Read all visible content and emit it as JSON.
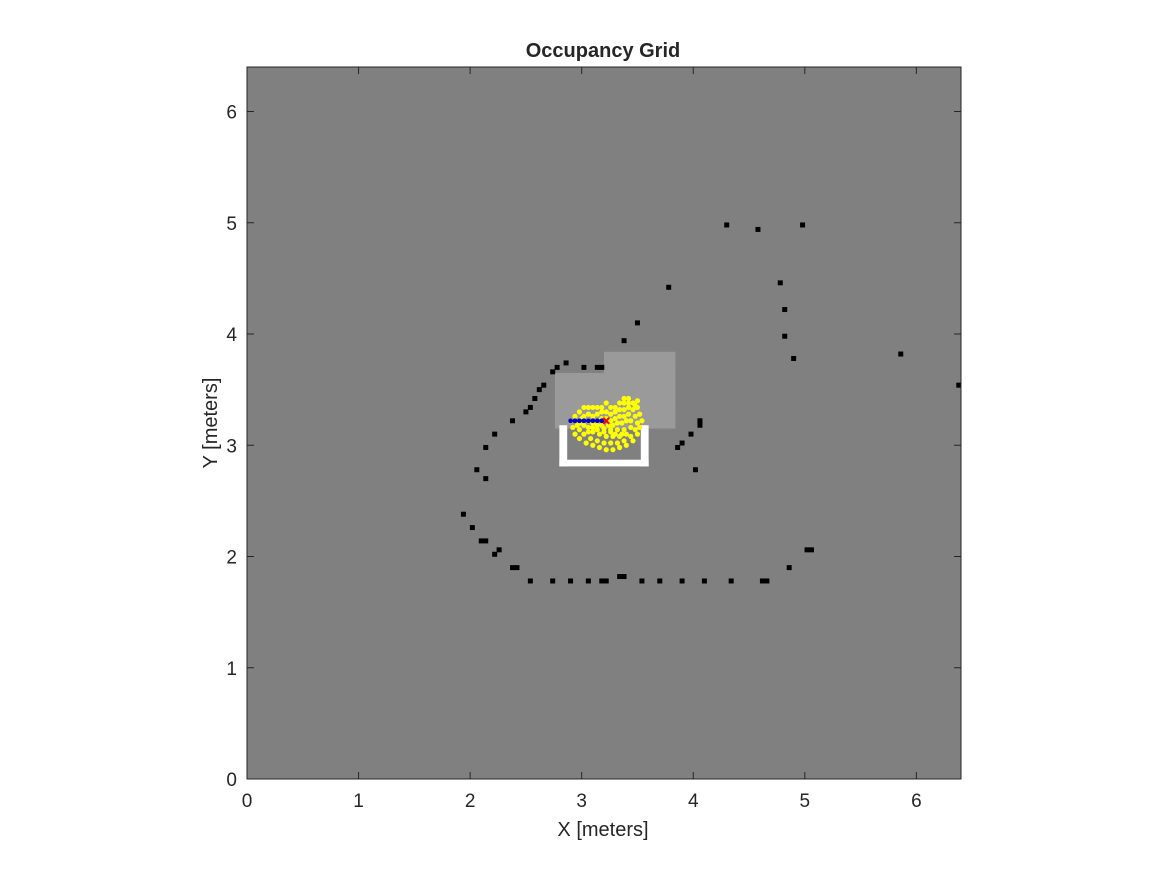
{
  "chart_data": {
    "type": "scatter",
    "title": "Occupancy Grid",
    "xlabel": "X [meters]",
    "ylabel": "Y [meters]",
    "xlim": [
      0,
      6.4
    ],
    "ylim": [
      0,
      6.4
    ],
    "xticks": [
      "0",
      "1",
      "2",
      "3",
      "4",
      "5",
      "6"
    ],
    "yticks": [
      "0",
      "1",
      "2",
      "3",
      "4",
      "5",
      "6"
    ],
    "grid": false,
    "legend": "none",
    "colors": {
      "unknown": "#808080",
      "free_light": "#9a9a9a",
      "free": "#ffffff",
      "occupied": "#000000",
      "particles": "#ffff00",
      "path": "#0000cc",
      "robot": "#ff0000",
      "axes": "#262626"
    },
    "regions": [
      {
        "name": "explored-area-upper",
        "x": [
          3.2,
          3.84
        ],
        "y": [
          3.35,
          3.84
        ],
        "color": "#9a9a9a"
      },
      {
        "name": "explored-area-lower",
        "x": [
          2.8,
          3.84
        ],
        "y": [
          3.15,
          3.65
        ],
        "color": "#9a9a9a"
      },
      {
        "name": "explored-area-left",
        "x": [
          2.76,
          2.85
        ],
        "y": [
          3.15,
          3.65
        ],
        "color": "#9a9a9a"
      }
    ],
    "free_cells": [
      [
        2.8,
        2.81,
        3.6,
        2.87
      ],
      [
        2.8,
        2.81,
        2.87,
        3.18
      ],
      [
        3.53,
        2.81,
        3.6,
        3.18
      ]
    ],
    "occupied_cells": [
      [
        4.3,
        4.98
      ],
      [
        4.58,
        4.94
      ],
      [
        4.98,
        4.98
      ],
      [
        3.78,
        4.42
      ],
      [
        4.78,
        4.46
      ],
      [
        4.82,
        4.22
      ],
      [
        4.82,
        3.98
      ],
      [
        4.9,
        3.78
      ],
      [
        3.5,
        4.1
      ],
      [
        3.38,
        3.94
      ],
      [
        5.86,
        3.82
      ],
      [
        6.38,
        3.54
      ],
      [
        3.14,
        3.7
      ],
      [
        3.18,
        3.7
      ],
      [
        3.02,
        3.7
      ],
      [
        2.86,
        3.74
      ],
      [
        2.78,
        3.7
      ],
      [
        2.74,
        3.66
      ],
      [
        2.66,
        3.54
      ],
      [
        2.62,
        3.5
      ],
      [
        2.58,
        3.42
      ],
      [
        2.54,
        3.34
      ],
      [
        2.5,
        3.3
      ],
      [
        2.38,
        3.22
      ],
      [
        2.22,
        3.1
      ],
      [
        2.14,
        2.98
      ],
      [
        2.06,
        2.78
      ],
      [
        2.14,
        2.7
      ],
      [
        1.94,
        2.38
      ],
      [
        2.02,
        2.26
      ],
      [
        2.1,
        2.14
      ],
      [
        2.14,
        2.14
      ],
      [
        2.26,
        2.06
      ],
      [
        2.22,
        2.02
      ],
      [
        2.38,
        1.9
      ],
      [
        2.42,
        1.9
      ],
      [
        2.54,
        1.78
      ],
      [
        2.74,
        1.78
      ],
      [
        2.9,
        1.78
      ],
      [
        3.06,
        1.78
      ],
      [
        3.18,
        1.78
      ],
      [
        3.22,
        1.78
      ],
      [
        3.34,
        1.82
      ],
      [
        3.38,
        1.82
      ],
      [
        3.54,
        1.78
      ],
      [
        3.7,
        1.78
      ],
      [
        3.9,
        1.78
      ],
      [
        4.1,
        1.78
      ],
      [
        4.34,
        1.78
      ],
      [
        4.62,
        1.78
      ],
      [
        4.66,
        1.78
      ],
      [
        4.86,
        1.9
      ],
      [
        5.02,
        2.06
      ],
      [
        5.06,
        2.06
      ],
      [
        3.86,
        2.98
      ],
      [
        3.9,
        3.02
      ],
      [
        3.98,
        3.1
      ],
      [
        4.06,
        3.18
      ],
      [
        4.06,
        3.22
      ],
      [
        4.02,
        2.78
      ]
    ],
    "particles": [
      [
        2.9,
        3.22
      ],
      [
        2.94,
        3.26
      ],
      [
        2.98,
        3.3
      ],
      [
        3.02,
        3.34
      ],
      [
        3.06,
        3.34
      ],
      [
        3.1,
        3.34
      ],
      [
        3.14,
        3.34
      ],
      [
        3.18,
        3.34
      ],
      [
        3.22,
        3.38
      ],
      [
        3.26,
        3.34
      ],
      [
        3.3,
        3.34
      ],
      [
        3.34,
        3.38
      ],
      [
        3.38,
        3.38
      ],
      [
        3.42,
        3.42
      ],
      [
        3.46,
        3.38
      ],
      [
        3.5,
        3.34
      ],
      [
        3.52,
        3.28
      ],
      [
        3.54,
        3.22
      ],
      [
        3.52,
        3.16
      ],
      [
        3.5,
        3.1
      ],
      [
        3.46,
        3.04
      ],
      [
        3.4,
        3.0
      ],
      [
        3.34,
        2.98
      ],
      [
        3.28,
        2.96
      ],
      [
        3.22,
        2.96
      ],
      [
        3.16,
        2.98
      ],
      [
        3.1,
        3.0
      ],
      [
        3.04,
        3.02
      ],
      [
        2.98,
        3.06
      ],
      [
        2.94,
        3.1
      ],
      [
        2.92,
        3.16
      ],
      [
        2.98,
        3.2
      ],
      [
        3.02,
        3.26
      ],
      [
        3.06,
        3.28
      ],
      [
        3.1,
        3.26
      ],
      [
        3.14,
        3.28
      ],
      [
        3.18,
        3.3
      ],
      [
        3.22,
        3.3
      ],
      [
        3.26,
        3.28
      ],
      [
        3.3,
        3.3
      ],
      [
        3.34,
        3.32
      ],
      [
        3.38,
        3.32
      ],
      [
        3.42,
        3.34
      ],
      [
        3.46,
        3.32
      ],
      [
        3.48,
        3.26
      ],
      [
        3.5,
        3.2
      ],
      [
        3.48,
        3.14
      ],
      [
        3.44,
        3.08
      ],
      [
        3.38,
        3.04
      ],
      [
        3.32,
        3.02
      ],
      [
        3.26,
        3.02
      ],
      [
        3.2,
        3.02
      ],
      [
        3.14,
        3.04
      ],
      [
        3.08,
        3.06
      ],
      [
        3.02,
        3.1
      ],
      [
        2.98,
        3.14
      ],
      [
        3.02,
        3.18
      ],
      [
        3.06,
        3.22
      ],
      [
        3.1,
        3.2
      ],
      [
        3.14,
        3.22
      ],
      [
        3.18,
        3.24
      ],
      [
        3.22,
        3.24
      ],
      [
        3.26,
        3.22
      ],
      [
        3.3,
        3.24
      ],
      [
        3.34,
        3.26
      ],
      [
        3.38,
        3.26
      ],
      [
        3.42,
        3.28
      ],
      [
        3.44,
        3.22
      ],
      [
        3.44,
        3.16
      ],
      [
        3.4,
        3.1
      ],
      [
        3.34,
        3.08
      ],
      [
        3.28,
        3.08
      ],
      [
        3.22,
        3.08
      ],
      [
        3.16,
        3.1
      ],
      [
        3.1,
        3.12
      ],
      [
        3.06,
        3.16
      ],
      [
        3.1,
        3.16
      ],
      [
        3.14,
        3.18
      ],
      [
        3.18,
        3.18
      ],
      [
        3.24,
        3.18
      ],
      [
        3.28,
        3.18
      ],
      [
        3.32,
        3.2
      ],
      [
        3.36,
        3.2
      ],
      [
        3.4,
        3.22
      ],
      [
        3.38,
        3.14
      ],
      [
        3.32,
        3.14
      ],
      [
        3.26,
        3.14
      ],
      [
        3.2,
        3.12
      ],
      [
        3.14,
        3.14
      ],
      [
        3.2,
        3.15
      ],
      [
        3.26,
        3.12
      ],
      [
        3.3,
        3.1
      ],
      [
        3.36,
        3.1
      ],
      [
        3.42,
        3.38
      ],
      [
        3.38,
        3.42
      ],
      [
        3.5,
        3.4
      ],
      [
        3.48,
        3.36
      ],
      [
        3.06,
        3.12
      ],
      [
        3.0,
        3.24
      ],
      [
        2.96,
        3.18
      ]
    ],
    "path": [
      [
        2.9,
        3.22
      ],
      [
        2.94,
        3.22
      ],
      [
        2.98,
        3.22
      ],
      [
        3.02,
        3.22
      ],
      [
        3.06,
        3.22
      ],
      [
        3.1,
        3.22
      ],
      [
        3.14,
        3.22
      ],
      [
        3.18,
        3.22
      ]
    ],
    "robot": [
      3.22,
      3.22
    ]
  }
}
